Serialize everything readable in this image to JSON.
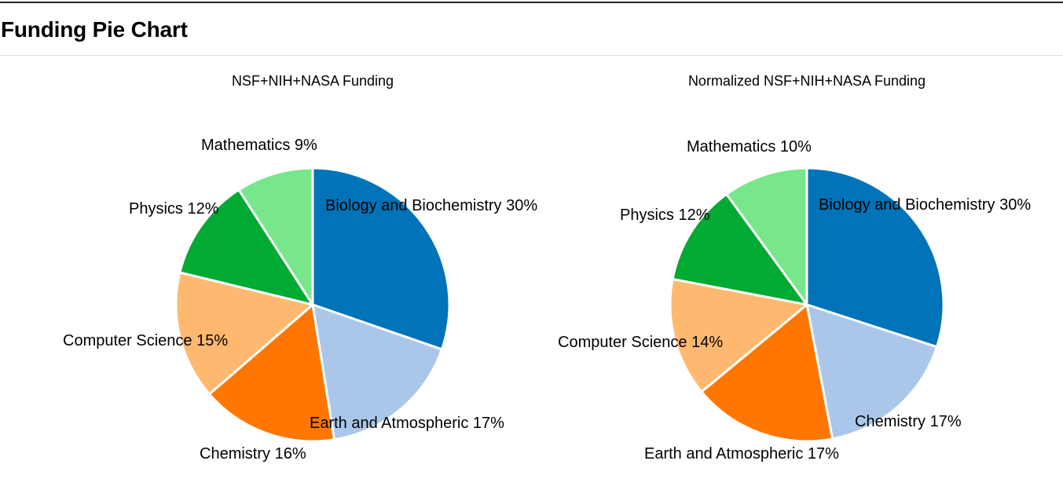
{
  "page": {
    "title": "Funding Pie Chart"
  },
  "chart_data": [
    {
      "type": "pie",
      "title": "NSF+NIH+NASA Funding",
      "slices": [
        {
          "label": "Biology and Biochemistry",
          "value": 30,
          "display": "Biology and Biochemistry 30%",
          "color": "#0173b8"
        },
        {
          "label": "Earth and Atmospheric",
          "value": 17,
          "display": "Earth and Atmospheric 17%",
          "color": "#aac7ea"
        },
        {
          "label": "Chemistry",
          "value": 16,
          "display": "Chemistry 16%",
          "color": "#ff7600"
        },
        {
          "label": "Computer Science",
          "value": 15,
          "display": "Computer Science 15%",
          "color": "#ffb870"
        },
        {
          "label": "Physics",
          "value": 12,
          "display": "Physics 12%",
          "color": "#00aa33"
        },
        {
          "label": "Mathematics",
          "value": 9,
          "display": "Mathematics 9%",
          "color": "#78e78b"
        }
      ]
    },
    {
      "type": "pie",
      "title": "Normalized NSF+NIH+NASA Funding",
      "slices": [
        {
          "label": "Biology and Biochemistry",
          "value": 30,
          "display": "Biology and Biochemistry 30%",
          "color": "#0173b8"
        },
        {
          "label": "Chemistry",
          "value": 17,
          "display": "Chemistry 17%",
          "color": "#aac7ea"
        },
        {
          "label": "Earth and Atmospheric",
          "value": 17,
          "display": "Earth and Atmospheric 17%",
          "color": "#ff7600"
        },
        {
          "label": "Computer Science",
          "value": 14,
          "display": "Computer Science 14%",
          "color": "#ffb870"
        },
        {
          "label": "Physics",
          "value": 12,
          "display": "Physics 12%",
          "color": "#00aa33"
        },
        {
          "label": "Mathematics",
          "value": 10,
          "display": "Mathematics 10%",
          "color": "#78e78b"
        }
      ]
    }
  ]
}
